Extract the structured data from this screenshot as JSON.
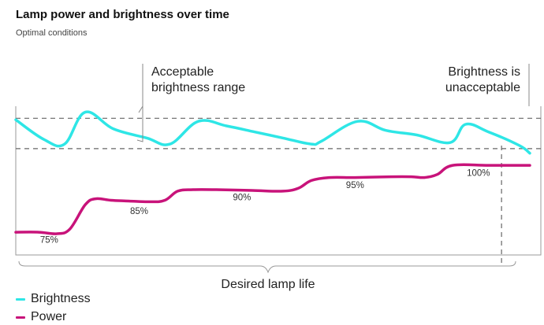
{
  "title": "Lamp power and brightness over time",
  "subtitle": "Optimal conditions",
  "colors": {
    "brightness": "#2ee6e6",
    "power": "#c8137a",
    "frame": "#9a9a9a",
    "dash": "#666666"
  },
  "chart_data": {
    "type": "line",
    "title": "Lamp power and brightness over time",
    "subtitle": "Optimal conditions",
    "xlim": [
      0,
      100
    ],
    "ylim": [
      0,
      100
    ],
    "grid": false,
    "legend_position": "bottom-left",
    "series": [
      {
        "name": "Brightness",
        "x": [
          0,
          5.5,
          9.5,
          13.5,
          19.0,
          25.5,
          30.0,
          35.5,
          41.0,
          46.5,
          52.0,
          57.5,
          59.5,
          66.5,
          72.0,
          78.0,
          84.5,
          87.5,
          92.0,
          98.0,
          100
        ],
        "y": [
          89,
          76,
          73,
          94,
          83,
          77,
          73,
          88,
          85,
          81,
          77,
          73,
          75,
          88,
          82,
          79,
          74,
          86,
          81,
          72,
          67
        ]
      },
      {
        "name": "Power",
        "x": [
          0,
          4.5,
          8.0,
          10.5,
          13.5,
          15.5,
          18.5,
          22.0,
          26.0,
          29.0,
          31.5,
          34.5,
          39.0,
          46.0,
          52.0,
          55.0,
          57.5,
          61.0,
          66.0,
          73.0,
          77.0,
          79.5,
          82.0,
          85.0,
          92.0,
          100
        ],
        "y": [
          15,
          15,
          14,
          17,
          33,
          37,
          36,
          35.5,
          35,
          36,
          42,
          43,
          43,
          42.5,
          42,
          44,
          49,
          51,
          51,
          51.5,
          51.5,
          51,
          53,
          59,
          59,
          59
        ]
      }
    ],
    "data_labels": [
      {
        "text": "75%",
        "x": 6.5,
        "y": 8
      },
      {
        "text": "85%",
        "x": 24.0,
        "y": 27
      },
      {
        "text": "90%",
        "x": 44.0,
        "y": 36
      },
      {
        "text": "95%",
        "x": 66.0,
        "y": 44
      },
      {
        "text": "100%",
        "x": 90.0,
        "y": 52
      }
    ],
    "reference_lines": [
      {
        "type": "horizontal",
        "y": 90,
        "style": "dashed"
      },
      {
        "type": "horizontal",
        "y": 70,
        "style": "dashed"
      },
      {
        "type": "vertical",
        "x": 94.5,
        "style": "dashed"
      }
    ],
    "annotations": [
      {
        "text_lines": [
          "Acceptable",
          "brightness range"
        ],
        "anchor": "acceptable-range"
      },
      {
        "text_lines": [
          "Brightness is",
          "unacceptable"
        ],
        "anchor": "unacceptable"
      },
      {
        "text": "Desired lamp life",
        "anchor": "bottom-brace"
      }
    ],
    "legend": [
      "Brightness",
      "Power"
    ]
  }
}
